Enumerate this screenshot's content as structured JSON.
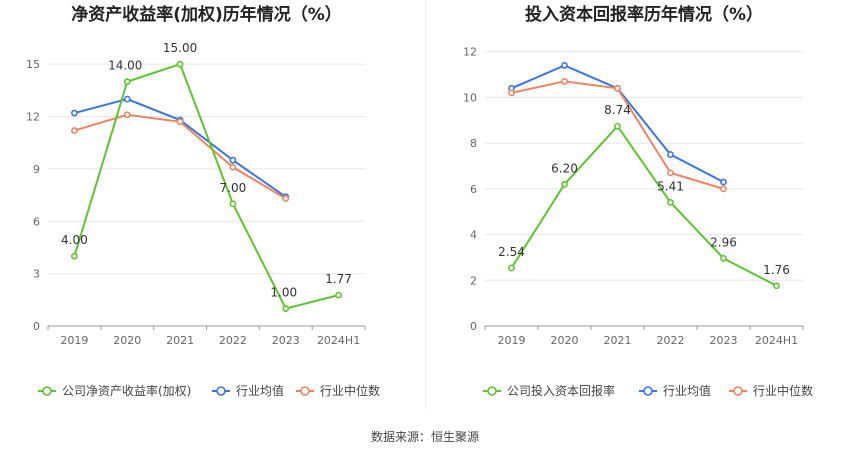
{
  "source_label": "数据来源：恒生聚源",
  "colors": {
    "company": "#5cc52f",
    "avg": "#3a77dd",
    "median": "#ee8462"
  },
  "chart_data": [
    {
      "type": "line",
      "title": "净资产收益率(加权)历年情况（%）",
      "categories": [
        "2019",
        "2020",
        "2021",
        "2022",
        "2023",
        "2024H1"
      ],
      "ylim": [
        0,
        16.5
      ],
      "yticks": [
        0,
        3,
        6,
        9,
        12,
        15
      ],
      "grid": true,
      "legend_position": "bottom",
      "series": [
        {
          "key": "company",
          "name": "公司净资产收益率(加权)",
          "values": [
            4.0,
            14.0,
            15.0,
            7.0,
            1.0,
            1.77
          ],
          "labels": [
            "4.00",
            "14.00",
            "15.00",
            "7.00",
            "1.00",
            "1.77"
          ]
        },
        {
          "key": "avg",
          "name": "行业均值",
          "values": [
            12.2,
            13.0,
            11.8,
            9.5,
            7.4,
            null
          ]
        },
        {
          "key": "median",
          "name": "行业中位数",
          "values": [
            11.2,
            12.1,
            11.7,
            9.1,
            7.3,
            null
          ]
        }
      ]
    },
    {
      "type": "line",
      "title": "投入资本回报率历年情况（%）",
      "categories": [
        "2019",
        "2020",
        "2021",
        "2022",
        "2023",
        "2024H1"
      ],
      "ylim": [
        0,
        12.6
      ],
      "yticks": [
        0,
        2,
        4,
        6,
        8,
        10,
        12
      ],
      "grid": true,
      "legend_position": "bottom",
      "series": [
        {
          "key": "company",
          "name": "公司投入资本回报率",
          "values": [
            2.54,
            6.2,
            8.74,
            5.41,
            2.96,
            1.76
          ],
          "labels": [
            "2.54",
            "6.20",
            "8.74",
            "5.41",
            "2.96",
            "1.76"
          ]
        },
        {
          "key": "avg",
          "name": "行业均值",
          "values": [
            10.4,
            11.4,
            10.4,
            7.5,
            6.3,
            null
          ]
        },
        {
          "key": "median",
          "name": "行业中位数",
          "values": [
            10.2,
            10.7,
            10.4,
            6.7,
            6.0,
            null
          ]
        }
      ]
    }
  ]
}
